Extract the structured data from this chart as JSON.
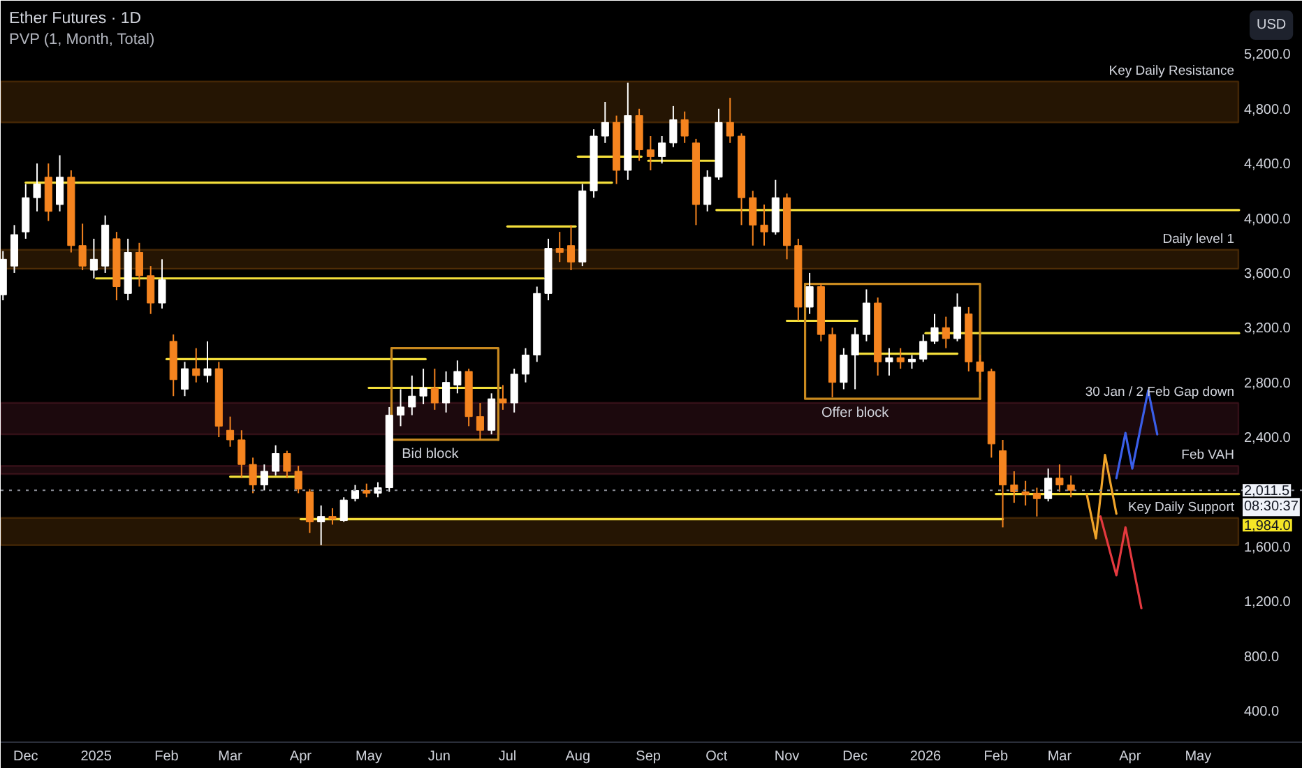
{
  "chart_data": {
    "type": "candlestick",
    "title": "Ether Futures · 1D",
    "subtitle": "PVP (1, Month, Total)",
    "ylabel": "USD",
    "xlim": [
      "2024-11-20",
      "2026-06-16"
    ],
    "ylim": [
      170,
      5590
    ],
    "xticks": [
      {
        "value": "2024-12-01",
        "label": "Dec"
      },
      {
        "value": "2025-01-01",
        "label": "2025"
      },
      {
        "value": "2025-02-01",
        "label": "Feb"
      },
      {
        "value": "2025-03-01",
        "label": "Mar"
      },
      {
        "value": "2025-04-01",
        "label": "Apr"
      },
      {
        "value": "2025-05-01",
        "label": "May"
      },
      {
        "value": "2025-06-01",
        "label": "Jun"
      },
      {
        "value": "2025-07-01",
        "label": "Jul"
      },
      {
        "value": "2025-08-01",
        "label": "Aug"
      },
      {
        "value": "2025-09-01",
        "label": "Sep"
      },
      {
        "value": "2025-10-01",
        "label": "Oct"
      },
      {
        "value": "2025-11-01",
        "label": "Nov"
      },
      {
        "value": "2025-12-01",
        "label": "Dec"
      },
      {
        "value": "2026-01-01",
        "label": "2026"
      },
      {
        "value": "2026-02-01",
        "label": "Feb"
      },
      {
        "value": "2026-03-01",
        "label": "Mar"
      },
      {
        "value": "2026-04-01",
        "label": "Apr"
      },
      {
        "value": "2026-05-01",
        "label": "May"
      }
    ],
    "yticks": [
      {
        "value": 400,
        "label": "400.0"
      },
      {
        "value": 800,
        "label": "800.0"
      },
      {
        "value": 1200,
        "label": "1,200.0"
      },
      {
        "value": 1600,
        "label": "1,600.0"
      },
      {
        "value": 2400,
        "label": "2,400.0"
      },
      {
        "value": 2800,
        "label": "2,800.0"
      },
      {
        "value": 3200,
        "label": "3,200.0"
      },
      {
        "value": 3600,
        "label": "3,600.0"
      },
      {
        "value": 4000,
        "label": "4,000.0"
      },
      {
        "value": 4400,
        "label": "4,400.0"
      },
      {
        "value": 4800,
        "label": "4,800.0"
      },
      {
        "value": 5200,
        "label": "5,200.0"
      }
    ],
    "grid": false,
    "bands": [
      {
        "axis": "y",
        "from": 4700,
        "to": 5000,
        "label": "Key Daily Resistance",
        "color": "#b86a10"
      },
      {
        "axis": "y",
        "from": 3630,
        "to": 3770,
        "label": "Daily level 1",
        "color": "#b86a10"
      },
      {
        "axis": "y",
        "from": 2420,
        "to": 2650,
        "label": "30 Jan / 2 Feb Gap down",
        "color": "#8e2b3f"
      },
      {
        "axis": "y",
        "from": 2130,
        "to": 2190,
        "label": "Feb VAH",
        "color": "#8e2b3f"
      },
      {
        "axis": "y",
        "from": 1610,
        "to": 1810,
        "label": "Key Daily Support",
        "color": "#b86a10"
      }
    ],
    "ref_lines": [
      {
        "axis": "y",
        "value": 2011.5,
        "label": "2,011.5",
        "color": "#8a8d96",
        "line_style": "dotted"
      }
    ],
    "annotations": [
      "08:30:37",
      {
        "text": "1,984.0",
        "y": 1984
      },
      {
        "text": "Bid block",
        "x": "2025-05-28",
        "y": 2380
      },
      {
        "text": "Offer block",
        "x": "2025-12-01",
        "y": 2680
      }
    ],
    "series": [
      {
        "x": [
          "2024-11-21",
          "2024-11-26",
          "2024-12-01",
          "2024-12-06",
          "2024-12-11",
          "2024-12-16",
          "2024-12-21",
          "2024-12-26",
          "2024-12-31",
          "2025-01-05",
          "2025-01-10",
          "2025-01-15",
          "2025-01-20",
          "2025-01-25",
          "2025-01-30",
          "2025-02-04",
          "2025-02-09",
          "2025-02-14",
          "2025-02-19",
          "2025-02-24",
          "2025-03-01",
          "2025-03-06",
          "2025-03-11",
          "2025-03-16",
          "2025-03-21",
          "2025-03-26",
          "2025-03-31",
          "2025-04-05",
          "2025-04-10",
          "2025-04-15",
          "2025-04-20",
          "2025-04-25",
          "2025-04-30",
          "2025-05-05",
          "2025-05-10",
          "2025-05-15",
          "2025-05-20",
          "2025-05-25",
          "2025-05-30",
          "2025-06-04",
          "2025-06-09",
          "2025-06-14",
          "2025-06-19",
          "2025-06-24",
          "2025-06-29",
          "2025-07-04",
          "2025-07-09",
          "2025-07-14",
          "2025-07-19",
          "2025-07-24",
          "2025-07-29",
          "2025-08-03",
          "2025-08-08",
          "2025-08-13",
          "2025-08-18",
          "2025-08-23",
          "2025-08-28",
          "2025-09-02",
          "2025-09-07",
          "2025-09-12",
          "2025-09-17",
          "2025-09-22",
          "2025-09-27",
          "2025-10-02",
          "2025-10-07",
          "2025-10-12",
          "2025-10-17",
          "2025-10-22",
          "2025-10-27",
          "2025-11-01",
          "2025-11-06",
          "2025-11-11",
          "2025-11-16",
          "2025-11-21",
          "2025-11-26",
          "2025-12-01",
          "2025-12-06",
          "2025-12-11",
          "2025-12-16",
          "2025-12-21",
          "2025-12-26",
          "2025-12-31",
          "2026-01-05",
          "2026-01-10",
          "2026-01-15",
          "2026-01-20",
          "2026-01-25",
          "2026-01-30",
          "2026-02-04",
          "2026-02-09",
          "2026-02-14",
          "2026-02-19",
          "2026-02-24",
          "2026-03-01",
          "2026-03-06"
        ],
        "ohlc": [
          [
            3440,
            3760,
            3400,
            3700
          ],
          [
            3650,
            3950,
            3600,
            3880
          ],
          [
            3900,
            4250,
            3850,
            4150
          ],
          [
            4150,
            4400,
            4050,
            4250
          ],
          [
            4300,
            4400,
            3980,
            4050
          ],
          [
            4100,
            4460,
            4050,
            4300
          ],
          [
            4300,
            4350,
            3750,
            3800
          ],
          [
            3800,
            3960,
            3620,
            3650
          ],
          [
            3620,
            3850,
            3560,
            3700
          ],
          [
            3650,
            4020,
            3600,
            3950
          ],
          [
            3850,
            3900,
            3400,
            3500
          ],
          [
            3450,
            3850,
            3400,
            3750
          ],
          [
            3750,
            3820,
            3500,
            3580
          ],
          [
            3580,
            3650,
            3300,
            3380
          ],
          [
            3380,
            3700,
            3340,
            3550
          ],
          [
            3100,
            3150,
            2700,
            2820
          ],
          [
            2750,
            2950,
            2700,
            2900
          ],
          [
            2900,
            3050,
            2800,
            2850
          ],
          [
            2850,
            3100,
            2800,
            2900
          ],
          [
            2900,
            2950,
            2400,
            2480
          ],
          [
            2450,
            2550,
            2330,
            2380
          ],
          [
            2380,
            2450,
            2100,
            2200
          ],
          [
            2200,
            2250,
            1990,
            2050
          ],
          [
            2050,
            2200,
            2010,
            2150
          ],
          [
            2150,
            2340,
            2120,
            2280
          ],
          [
            2280,
            2300,
            2100,
            2150
          ],
          [
            2150,
            2190,
            1990,
            2020
          ],
          [
            2000,
            2020,
            1700,
            1780
          ],
          [
            1780,
            1900,
            1610,
            1820
          ],
          [
            1820,
            1880,
            1760,
            1800
          ],
          [
            1790,
            1960,
            1780,
            1940
          ],
          [
            1950,
            2050,
            1930,
            2010
          ],
          [
            2010,
            2060,
            1960,
            1990
          ],
          [
            1990,
            2070,
            1960,
            2030
          ],
          [
            2030,
            2620,
            2000,
            2560
          ],
          [
            2560,
            2750,
            2480,
            2620
          ],
          [
            2620,
            2850,
            2560,
            2700
          ],
          [
            2700,
            2900,
            2640,
            2760
          ],
          [
            2760,
            2900,
            2600,
            2650
          ],
          [
            2650,
            2880,
            2580,
            2800
          ],
          [
            2780,
            2960,
            2720,
            2880
          ],
          [
            2880,
            2900,
            2480,
            2550
          ],
          [
            2550,
            2650,
            2380,
            2450
          ],
          [
            2450,
            2720,
            2420,
            2680
          ],
          [
            2680,
            2780,
            2600,
            2650
          ],
          [
            2650,
            2900,
            2580,
            2860
          ],
          [
            2860,
            3050,
            2800,
            3000
          ],
          [
            3000,
            3500,
            2950,
            3450
          ],
          [
            3450,
            3850,
            3400,
            3780
          ],
          [
            3780,
            3900,
            3680,
            3750
          ],
          [
            3800,
            3950,
            3620,
            3680
          ],
          [
            3680,
            4250,
            3650,
            4200
          ],
          [
            4200,
            4650,
            4150,
            4600
          ],
          [
            4600,
            4850,
            4550,
            4700
          ],
          [
            4700,
            4750,
            4250,
            4350
          ],
          [
            4350,
            4990,
            4280,
            4750
          ],
          [
            4750,
            4800,
            4420,
            4500
          ],
          [
            4500,
            4600,
            4350,
            4450
          ],
          [
            4450,
            4600,
            4400,
            4550
          ],
          [
            4550,
            4820,
            4520,
            4720
          ],
          [
            4720,
            4780,
            4550,
            4600
          ],
          [
            4550,
            4580,
            3950,
            4100
          ],
          [
            4100,
            4350,
            4050,
            4300
          ],
          [
            4300,
            4800,
            4280,
            4700
          ],
          [
            4700,
            4880,
            4550,
            4600
          ],
          [
            4600,
            4620,
            3950,
            4150
          ],
          [
            4150,
            4200,
            3800,
            3950
          ],
          [
            3950,
            4100,
            3800,
            3900
          ],
          [
            3900,
            4280,
            3880,
            4150
          ],
          [
            4150,
            4180,
            3700,
            3800
          ],
          [
            3800,
            3850,
            3250,
            3350
          ],
          [
            3350,
            3600,
            3300,
            3500
          ],
          [
            3500,
            3520,
            3100,
            3150
          ],
          [
            3150,
            3200,
            2690,
            2800
          ],
          [
            2800,
            3050,
            2750,
            3000
          ],
          [
            3000,
            3200,
            2750,
            3150
          ],
          [
            3150,
            3480,
            3100,
            3380
          ],
          [
            3380,
            3420,
            2850,
            2950
          ],
          [
            2950,
            3050,
            2850,
            2980
          ],
          [
            2980,
            3050,
            2900,
            2950
          ],
          [
            2950,
            3000,
            2900,
            2970
          ],
          [
            2970,
            3150,
            2950,
            3100
          ],
          [
            3100,
            3300,
            3080,
            3200
          ],
          [
            3200,
            3280,
            3050,
            3120
          ],
          [
            3120,
            3450,
            3100,
            3350
          ],
          [
            3300,
            3350,
            2880,
            2950
          ],
          [
            2950,
            3000,
            2800,
            2880
          ],
          [
            2880,
            2900,
            2250,
            2350
          ],
          [
            2300,
            2380,
            1740,
            2050
          ],
          [
            2050,
            2150,
            1920,
            2000
          ],
          [
            2000,
            2080,
            1900,
            1980
          ],
          [
            1990,
            2030,
            1820,
            1950
          ],
          [
            1950,
            2170,
            1930,
            2100
          ],
          [
            2100,
            2200,
            2000,
            2050
          ],
          [
            2050,
            2120,
            1960,
            2011.5
          ]
        ],
        "colors": [
          "#ffffff",
          "#ffffff",
          "#ffffff",
          "#ffffff",
          "#f5841f",
          "#ffffff",
          "#f5841f",
          "#f5841f",
          "#ffffff",
          "#ffffff",
          "#f5841f",
          "#ffffff",
          "#f5841f",
          "#f5841f",
          "#ffffff",
          "#f5841f",
          "#ffffff",
          "#f5841f",
          "#ffffff",
          "#f5841f",
          "#f5841f",
          "#f5841f",
          "#f5841f",
          "#ffffff",
          "#ffffff",
          "#f5841f",
          "#f5841f",
          "#f5841f",
          "#ffffff",
          "#f5841f",
          "#ffffff",
          "#ffffff",
          "#f5841f",
          "#ffffff",
          "#ffffff",
          "#ffffff",
          "#ffffff",
          "#ffffff",
          "#f5841f",
          "#ffffff",
          "#ffffff",
          "#f5841f",
          "#f5841f",
          "#ffffff",
          "#f5841f",
          "#ffffff",
          "#ffffff",
          "#ffffff",
          "#ffffff",
          "#f5841f",
          "#f5841f",
          "#ffffff",
          "#ffffff",
          "#ffffff",
          "#f5841f",
          "#ffffff",
          "#f5841f",
          "#f5841f",
          "#ffffff",
          "#ffffff",
          "#f5841f",
          "#f5841f",
          "#ffffff",
          "#ffffff",
          "#f5841f",
          "#f5841f",
          "#f5841f",
          "#f5841f",
          "#ffffff",
          "#f5841f",
          "#f5841f",
          "#ffffff",
          "#f5841f",
          "#f5841f",
          "#ffffff",
          "#ffffff",
          "#ffffff",
          "#f5841f",
          "#ffffff",
          "#f5841f",
          "#ffffff",
          "#ffffff",
          "#ffffff",
          "#f5841f",
          "#ffffff",
          "#f5841f",
          "#f5841f",
          "#f5841f",
          "#f5841f",
          "#f5841f",
          "#f5841f",
          "#f5841f",
          "#ffffff",
          "#f5841f",
          "#f5841f"
        ]
      },
      {
        "type": "line",
        "color": "#f4df3b",
        "x": [
          "2024-12-01",
          "2025-08-16"
        ],
        "values": [
          4260,
          4260
        ]
      },
      {
        "type": "line",
        "color": "#f4df3b",
        "x": [
          "2025-01-01",
          "2025-07-17"
        ],
        "values": [
          3560,
          3560
        ]
      },
      {
        "type": "line",
        "color": "#f4df3b",
        "x": [
          "2025-02-01",
          "2025-05-26"
        ],
        "values": [
          2970,
          2970
        ]
      },
      {
        "type": "line",
        "color": "#f4df3b",
        "x": [
          "2025-03-01",
          "2025-03-31"
        ],
        "values": [
          2110,
          2110
        ]
      },
      {
        "type": "line",
        "color": "#f4df3b",
        "x": [
          "2025-04-01",
          "2026-02-04"
        ],
        "values": [
          1800,
          1800
        ]
      },
      {
        "type": "line",
        "color": "#f4df3b",
        "x": [
          "2025-05-01",
          "2025-06-28"
        ],
        "values": [
          2760,
          2760
        ]
      },
      {
        "type": "line",
        "color": "#f4df3b",
        "x": [
          "2025-07-01",
          "2025-07-31"
        ],
        "values": [
          3940,
          3940
        ]
      },
      {
        "type": "line",
        "color": "#f4df3b",
        "x": [
          "2025-08-01",
          "2025-08-29"
        ],
        "values": [
          4450,
          4450
        ]
      },
      {
        "type": "line",
        "color": "#f4df3b",
        "x": [
          "2025-09-01",
          "2025-09-30"
        ],
        "values": [
          4420,
          4420
        ]
      },
      {
        "type": "line",
        "color": "#f4df3b",
        "x": [
          "2025-10-01",
          "2026-05-19"
        ],
        "values": [
          4060,
          4060
        ]
      },
      {
        "type": "line",
        "color": "#f4df3b",
        "x": [
          "2025-11-01",
          "2025-12-02"
        ],
        "values": [
          3250,
          3250
        ]
      },
      {
        "type": "line",
        "color": "#f4df3b",
        "x": [
          "2025-12-01",
          "2026-01-15"
        ],
        "values": [
          3010,
          3010
        ]
      },
      {
        "type": "line",
        "color": "#f4df3b",
        "x": [
          "2026-01-01",
          "2026-05-19"
        ],
        "values": [
          3160,
          3160
        ]
      },
      {
        "type": "line",
        "color": "#f4df3b",
        "x": [
          "2026-02-01",
          "2026-05-19"
        ],
        "values": [
          1984,
          1984
        ]
      },
      {
        "type": "line",
        "color": "#c8891f",
        "x": [
          "2025-05-11",
          "2025-06-27",
          "2025-06-27"
        ],
        "values": [
          3050,
          3050,
          2380
        ]
      },
      {
        "type": "line",
        "color": "#c8891f",
        "x": [
          "2025-06-27",
          "2025-05-11",
          "2025-05-11"
        ],
        "values": [
          2380,
          2380,
          3050
        ]
      },
      {
        "type": "line",
        "color": "#c8891f",
        "x": [
          "2025-11-09",
          "2026-01-25",
          "2026-01-25"
        ],
        "values": [
          3520,
          3520,
          2680
        ]
      },
      {
        "type": "line",
        "color": "#c8891f",
        "x": [
          "2026-01-25",
          "2025-11-09",
          "2025-11-09"
        ],
        "values": [
          2680,
          2680,
          3520
        ]
      },
      {
        "type": "line",
        "color": "#f0a42a",
        "x": [
          "2026-03-13",
          "2026-03-17",
          "2026-03-21",
          "2026-03-26"
        ],
        "values": [
          1980,
          1660,
          2270,
          1840
        ]
      },
      {
        "type": "line",
        "color": "#e5393f",
        "x": [
          "2026-03-19",
          "2026-03-26",
          "2026-03-30",
          "2026-04-06"
        ],
        "values": [
          1820,
          1390,
          1740,
          1150
        ]
      },
      {
        "type": "line",
        "color": "#3a5ee8",
        "x": [
          "2026-03-26",
          "2026-03-30",
          "2026-04-02",
          "2026-04-09",
          "2026-04-13"
        ],
        "values": [
          2100,
          2430,
          2170,
          2740,
          2420
        ]
      }
    ]
  }
}
